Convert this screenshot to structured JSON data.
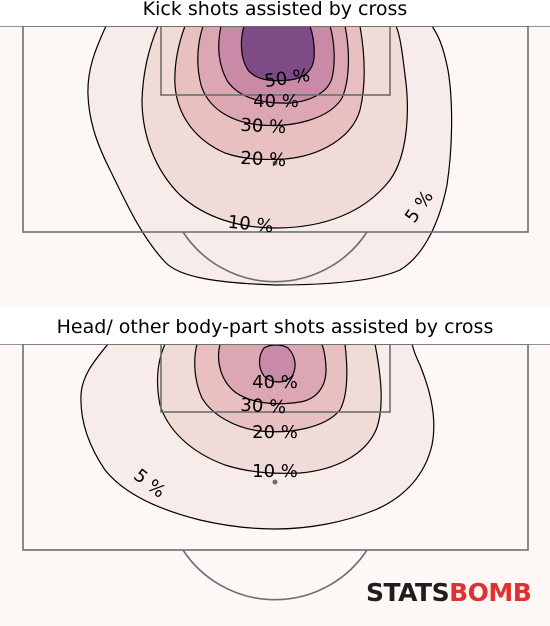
{
  "chart_data": [
    {
      "type": "contour",
      "title": "Kick shots assisted by cross",
      "background": "#fdf8f5",
      "levels": [
        {
          "label": "5 %",
          "value": 5,
          "color": "#f7ece9"
        },
        {
          "label": "10 %",
          "value": 10,
          "color": "#f1dbd6"
        },
        {
          "label": "20 %",
          "value": 20,
          "color": "#e8c0c0"
        },
        {
          "label": "30 %",
          "value": 30,
          "color": "#dda6b3"
        },
        {
          "label": "40 %",
          "value": 40,
          "color": "#c88aa6"
        },
        {
          "label": "50 %",
          "value": 50,
          "color": "#7f4b87"
        }
      ]
    },
    {
      "type": "contour",
      "title": "Head/ other body-part shots assisted by cross",
      "background": "#fdf8f5",
      "levels": [
        {
          "label": "5 %",
          "value": 5,
          "color": "#f7ece9"
        },
        {
          "label": "10 %",
          "value": 10,
          "color": "#f1dbd6"
        },
        {
          "label": "20 %",
          "value": 20,
          "color": "#e8c0c0"
        },
        {
          "label": "30 %",
          "value": 30,
          "color": "#dda6b3"
        },
        {
          "label": "40 %",
          "value": 40,
          "color": "#c88aa6"
        }
      ]
    }
  ],
  "logo": {
    "left": "STATS",
    "right": "BOMB",
    "left_color": "#1e1e1e",
    "right_color": "#e0302f"
  }
}
